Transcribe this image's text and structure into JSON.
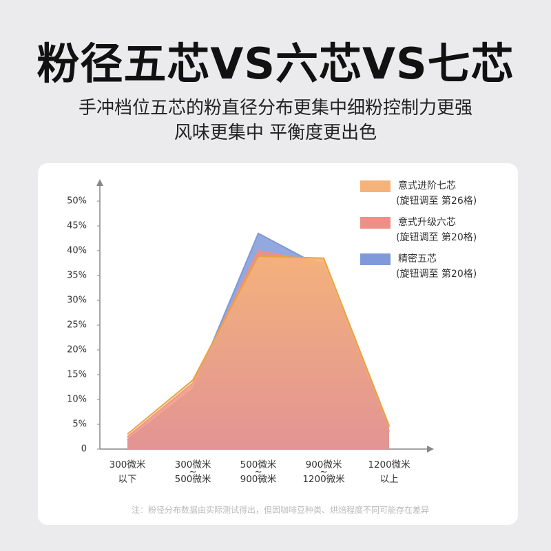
{
  "header": {
    "title": "粉径五芯VS六芯VS七芯",
    "subtitle": [
      "手冲档位五芯的粉直径分布更集中细粉控制力更强",
      "风味更集中 平衡度更出色"
    ]
  },
  "chart_data": {
    "type": "area",
    "categories": [
      [
        "300微米",
        "以下"
      ],
      [
        "300微米",
        "~",
        "500微米"
      ],
      [
        "500微米",
        "~",
        "900微米"
      ],
      [
        "900微米",
        "~",
        "1200微米"
      ],
      [
        "1200微米",
        "以上"
      ]
    ],
    "series": [
      {
        "name": "精密五芯",
        "note": "(旋钮调至 第20格)",
        "color": "#7f99d9",
        "values": [
          1.8,
          12,
          43.5,
          36.5,
          3.5
        ]
      },
      {
        "name": "意式升级六芯",
        "note": "(旋钮调至 第20格)",
        "color": "#ef8f88",
        "values": [
          2.5,
          13.3,
          40,
          37.5,
          4.5
        ]
      },
      {
        "name": "意式进阶七芯",
        "note": "(旋钮调至 第26格)",
        "color": "#f5b27a",
        "values": [
          3,
          13.9,
          38.9,
          38.5,
          4.7
        ]
      }
    ],
    "ylim": [
      0,
      54
    ],
    "yticks": [
      0,
      {
        "value": 5,
        "label": "5%"
      },
      {
        "value": 10,
        "label": "10%"
      },
      {
        "value": 15,
        "label": "15%"
      },
      {
        "value": 20,
        "label": "20%"
      },
      {
        "value": 25,
        "label": "25%"
      },
      {
        "value": 30,
        "label": "30%"
      },
      {
        "value": 35,
        "label": "35%"
      },
      {
        "value": 40,
        "label": "40%"
      },
      {
        "value": 45,
        "label": "45%"
      },
      {
        "value": 50,
        "label": "50%"
      }
    ],
    "legend": "top-right"
  },
  "footnote": "注：粉径分布数据由实际测试得出，但因咖啡豆种类、烘焙程度不同可能存在差异"
}
